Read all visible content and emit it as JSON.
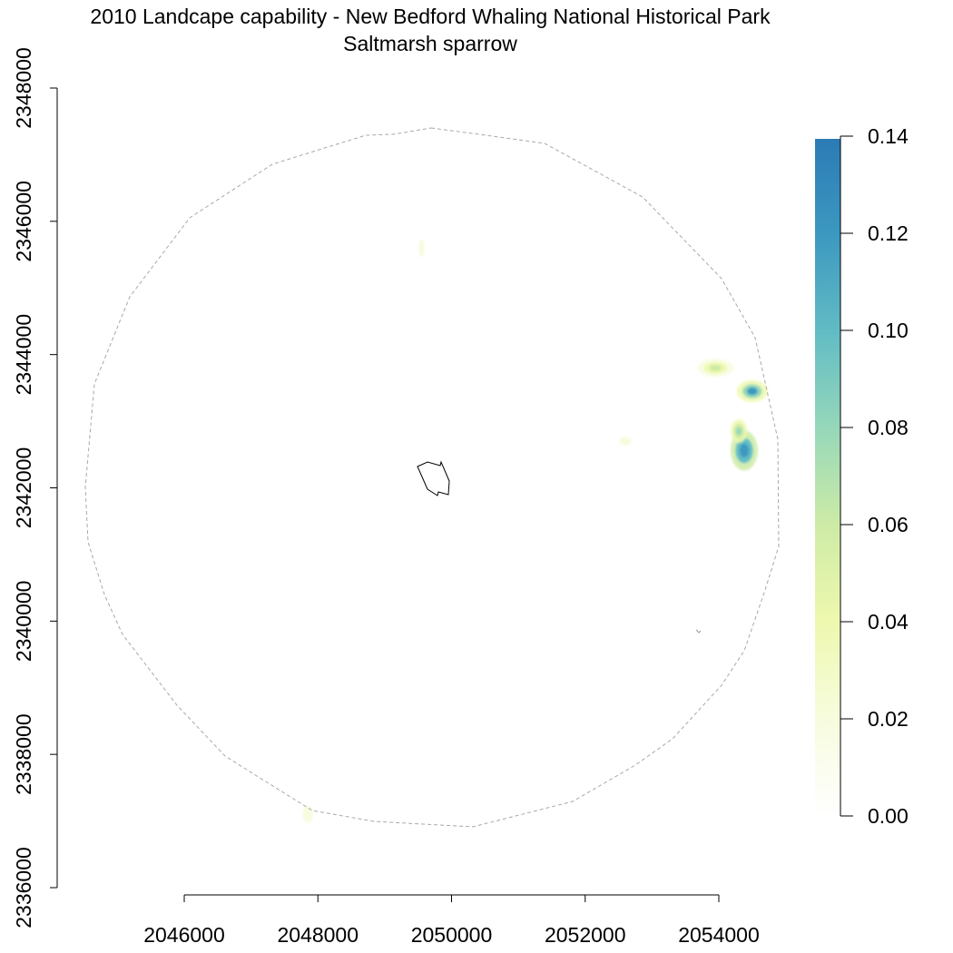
{
  "title": {
    "line1": "2010 Landcape capability - New Bedford Whaling National Historical Park",
    "line2": "Saltmarsh sparrow"
  },
  "x_axis": {
    "ticks": [
      "2046000",
      "2048000",
      "2050000",
      "2052000",
      "2054000"
    ]
  },
  "y_axis": {
    "ticks": [
      "2336000",
      "2338000",
      "2340000",
      "2342000",
      "2344000",
      "2346000",
      "2348000"
    ]
  },
  "legend": {
    "ticks": [
      "0.00",
      "0.02",
      "0.04",
      "0.06",
      "0.08",
      "0.10",
      "0.12",
      "0.14"
    ],
    "colors": [
      "#ffffff",
      "#f7fcdf",
      "#eef8ae",
      "#cdeba6",
      "#97d8b9",
      "#63bdc4",
      "#3c98c0",
      "#2b7bb5"
    ]
  },
  "layers": {
    "study_area": "dashed circular buffer",
    "park_boundary": "park outline",
    "capability_patches": [
      {
        "x": 2054380,
        "y": 2342560,
        "value": 0.13
      },
      {
        "x": 2054500,
        "y": 2343450,
        "value": 0.11
      },
      {
        "x": 2054300,
        "y": 2342850,
        "value": 0.08
      },
      {
        "x": 2053950,
        "y": 2343800,
        "value": 0.05
      },
      {
        "x": 2052600,
        "y": 2342700,
        "value": 0.01
      },
      {
        "x": 2049550,
        "y": 2345600,
        "value": 0.01
      },
      {
        "x": 2047850,
        "y": 2337100,
        "value": 0.02
      }
    ]
  }
}
